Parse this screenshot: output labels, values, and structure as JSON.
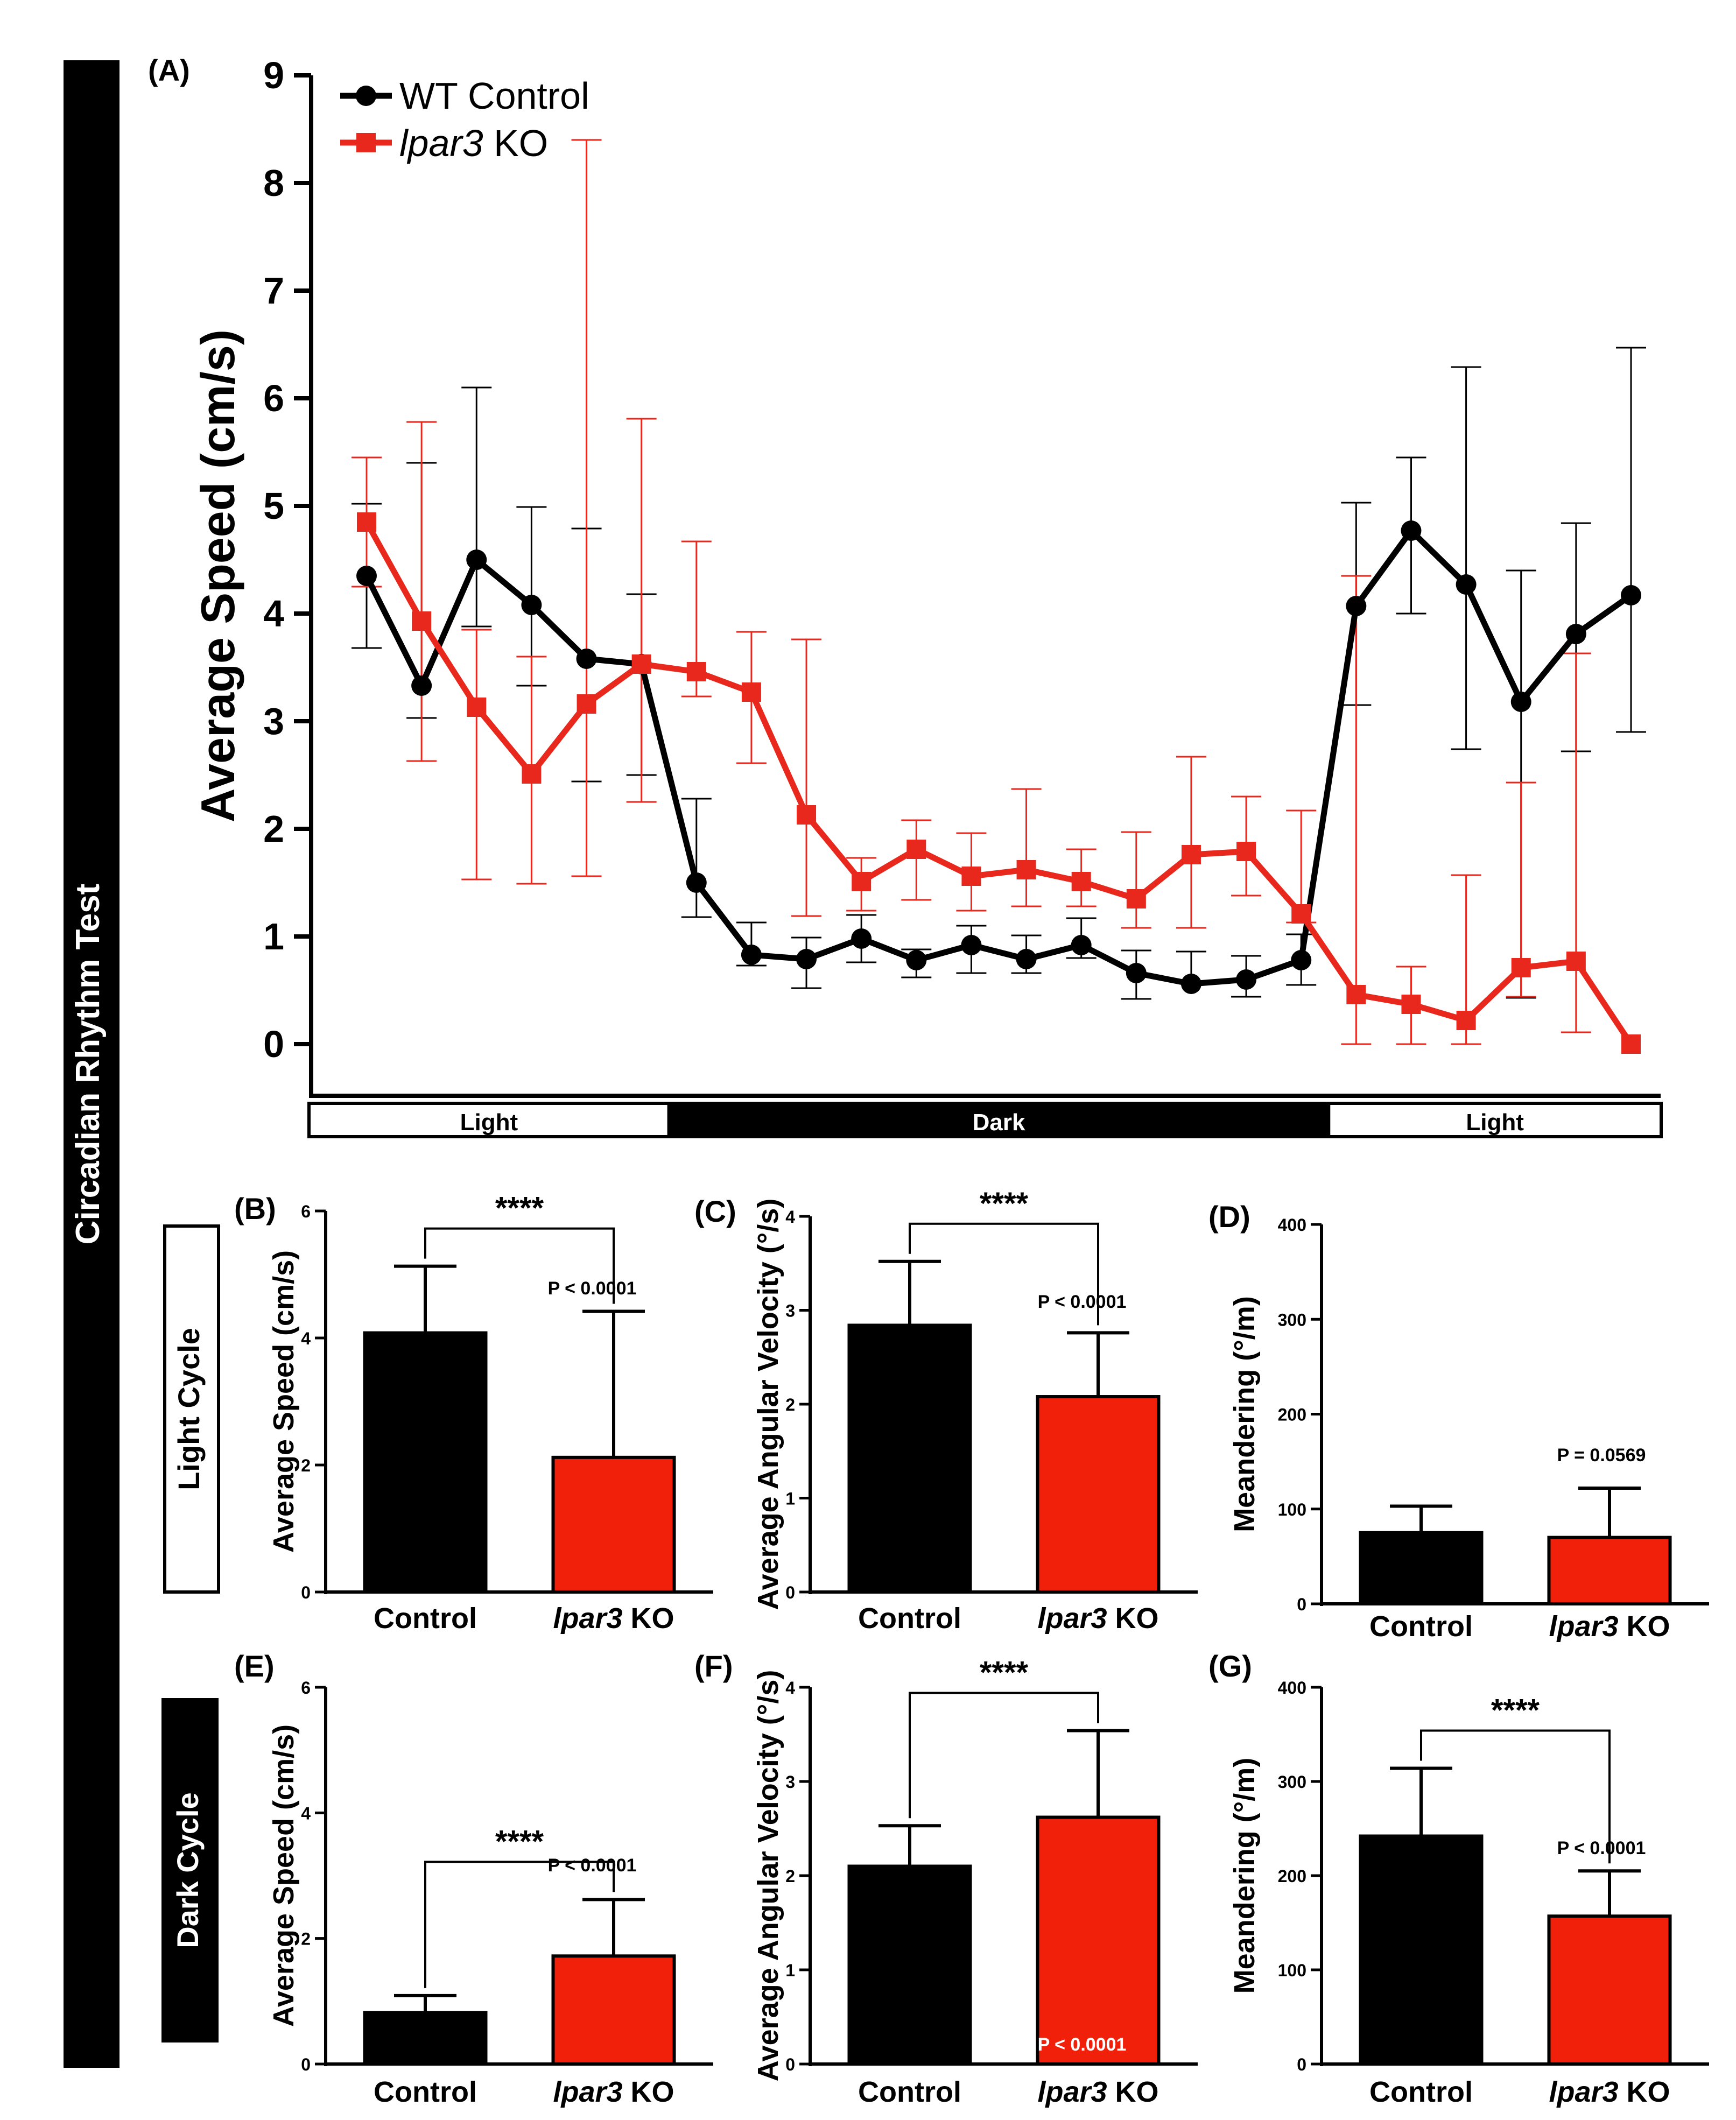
{
  "colors": {
    "wt": "#000000",
    "ko": "#e8281d",
    "ko_fill": "#f1200b"
  },
  "side_title": "Circadian Rhythm Test",
  "row_labels": {
    "light": "Light Cycle",
    "dark": "Dark Cycle"
  },
  "chart_data": [
    {
      "panel": "(A)",
      "type": "line",
      "ylabel": "Average Speed (cm/s)",
      "ylim": [
        0,
        9
      ],
      "yticks": [
        "0",
        "1",
        "2",
        "3",
        "4",
        "5",
        "6",
        "7",
        "8",
        "9"
      ],
      "x": [
        1,
        2,
        3,
        4,
        5,
        6,
        7,
        8,
        9,
        10,
        11,
        12,
        13,
        14,
        15,
        16,
        17,
        18,
        19,
        20,
        21,
        22,
        23,
        24
      ],
      "series": [
        {
          "name": "WT Control",
          "marker": "circle",
          "values": [
            4.35,
            3.33,
            4.5,
            4.08,
            3.58,
            3.53,
            1.5,
            0.83,
            0.79,
            0.98,
            0.78,
            0.92,
            0.79,
            0.92,
            0.66,
            0.56,
            0.6,
            0.78,
            4.07,
            4.77,
            4.27,
            3.18,
            3.81,
            4.17
          ],
          "err_low": [
            0.67,
            0.3,
            0.62,
            0.75,
            1.14,
            1.03,
            0.32,
            0.1,
            0.27,
            0.22,
            0.16,
            0.26,
            0.13,
            0.12,
            0.24,
            0.0,
            0.16,
            0.23,
            0.92,
            0.77,
            1.53,
            2.75,
            1.09,
            1.27
          ],
          "err_high": [
            0.67,
            2.07,
            1.6,
            0.91,
            1.21,
            0.65,
            0.78,
            0.3,
            0.2,
            0.22,
            0.1,
            0.18,
            0.22,
            0.25,
            0.21,
            0.3,
            0.22,
            0.24,
            0.96,
            0.68,
            2.02,
            1.22,
            1.03,
            2.3
          ]
        },
        {
          "name": "lpar3 KO",
          "name_italic": "lpar3",
          "name_rest": " KO",
          "marker": "square",
          "values": [
            4.85,
            3.93,
            3.13,
            2.51,
            3.16,
            3.53,
            3.46,
            3.27,
            2.13,
            1.51,
            1.81,
            1.56,
            1.62,
            1.51,
            1.35,
            1.76,
            1.79,
            1.21,
            0.46,
            0.37,
            0.22,
            0.71,
            0.77,
            0.0
          ],
          "err_low": [
            0.6,
            1.3,
            1.6,
            1.02,
            1.6,
            1.28,
            0.23,
            0.66,
            0.94,
            0.27,
            0.47,
            0.32,
            0.34,
            0.23,
            0.27,
            0.68,
            0.41,
            0.08,
            0.46,
            0.37,
            0.22,
            0.27,
            0.66,
            0.0
          ],
          "err_high": [
            0.6,
            1.85,
            0.72,
            1.09,
            5.24,
            2.28,
            1.21,
            0.56,
            1.63,
            0.22,
            0.27,
            0.4,
            0.75,
            0.3,
            0.62,
            0.91,
            0.51,
            0.96,
            3.89,
            0.35,
            1.35,
            1.72,
            2.86,
            0.0
          ]
        }
      ],
      "phases": [
        {
          "label": "Light",
          "from": 0.5,
          "to": 6.5,
          "dark": false
        },
        {
          "label": "Dark",
          "from": 6.5,
          "to": 18.5,
          "dark": true
        },
        {
          "label": "Light",
          "from": 18.5,
          "to": 24.5,
          "dark": false
        }
      ]
    },
    {
      "panel": "(B)",
      "type": "bar",
      "row": "light",
      "ylabel": "Average Speed (cm/s)",
      "ylim": [
        0,
        6
      ],
      "yticks": [
        "0",
        "2",
        "4",
        "6"
      ],
      "categories": [
        "Control",
        "lpar3 KO"
      ],
      "values": [
        4.08,
        2.12
      ],
      "errors": [
        1.05,
        2.3
      ],
      "sig": "****",
      "pvalue": "P < 0.0001"
    },
    {
      "panel": "(C)",
      "type": "bar",
      "row": "light",
      "ylabel": "Average Angular Velocity (°/s)",
      "ylim": [
        0,
        4
      ],
      "yticks": [
        "0",
        "1",
        "2",
        "3",
        "4"
      ],
      "categories": [
        "Control",
        "lpar3 KO"
      ],
      "values": [
        2.84,
        2.08
      ],
      "errors": [
        0.68,
        0.68
      ],
      "sig": "****",
      "pvalue": "P < 0.0001"
    },
    {
      "panel": "(D)",
      "type": "bar",
      "row": "light",
      "ylabel": "Meandering (°/m)",
      "ylim": [
        0,
        400
      ],
      "yticks": [
        "0",
        "100",
        "200",
        "300",
        "400"
      ],
      "categories": [
        "Control",
        "lpar3 KO"
      ],
      "values": [
        75,
        70
      ],
      "errors": [
        28,
        52
      ],
      "sig": "",
      "pvalue": "P = 0.0569"
    },
    {
      "panel": "(E)",
      "type": "bar",
      "row": "dark",
      "ylabel": "Average Speed (cm/s)",
      "ylim": [
        0,
        6
      ],
      "yticks": [
        "0",
        "2",
        "4",
        "6"
      ],
      "categories": [
        "Control",
        "lpar3 KO"
      ],
      "values": [
        0.82,
        1.72
      ],
      "errors": [
        0.27,
        0.9
      ],
      "sig": "****",
      "pvalue": "P < 0.0001"
    },
    {
      "panel": "(F)",
      "type": "bar",
      "row": "dark",
      "ylabel": "Average Angular Velocity (°/s)",
      "ylim": [
        0,
        4
      ],
      "yticks": [
        "0",
        "1",
        "2",
        "3",
        "4"
      ],
      "categories": [
        "Control",
        "lpar3 KO"
      ],
      "values": [
        2.1,
        2.62
      ],
      "errors": [
        0.43,
        0.92
      ],
      "sig": "****",
      "pvalue": "P < 0.0001"
    },
    {
      "panel": "(G)",
      "type": "bar",
      "row": "dark",
      "ylabel": "Meandering (°/m)",
      "ylim": [
        0,
        400
      ],
      "yticks": [
        "0",
        "100",
        "200",
        "300",
        "400"
      ],
      "categories": [
        "Control",
        "lpar3 KO"
      ],
      "values": [
        242,
        157
      ],
      "errors": [
        72,
        48
      ],
      "sig": "****",
      "pvalue": "P < 0.0001"
    }
  ]
}
